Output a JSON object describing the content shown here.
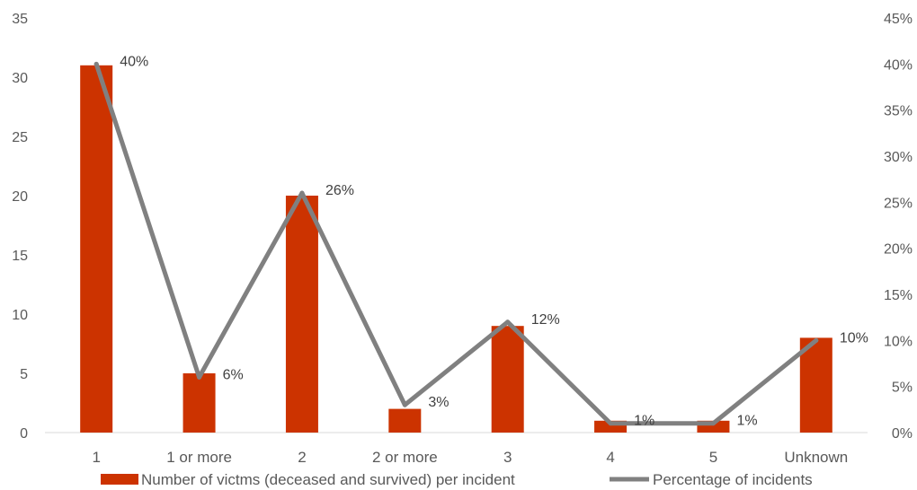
{
  "chart_data": {
    "type": "bar",
    "categories": [
      "1",
      "1 or more",
      "2",
      "2 or more",
      "3",
      "4",
      "5",
      "Unknown"
    ],
    "series": [
      {
        "name": "Number of victms (deceased and survived) per incident",
        "type": "bar",
        "axis": "left",
        "values": [
          31,
          5,
          20,
          2,
          9,
          1,
          1,
          8
        ],
        "color": "#cc3300"
      },
      {
        "name": "Percentage of incidents",
        "type": "line",
        "axis": "right",
        "values": [
          40,
          6,
          26,
          3,
          12,
          1,
          1,
          10
        ],
        "labels": [
          "40%",
          "6%",
          "26%",
          "3%",
          "12%",
          "1%",
          "1%",
          "10%"
        ],
        "color": "#808080"
      }
    ],
    "y_left": {
      "min": 0,
      "max": 35,
      "step": 5,
      "ticks": [
        "0",
        "5",
        "10",
        "15",
        "20",
        "25",
        "30",
        "35"
      ]
    },
    "y_right": {
      "min": 0,
      "max": 45,
      "step": 5,
      "ticks": [
        "0%",
        "5%",
        "10%",
        "15%",
        "20%",
        "25%",
        "30%",
        "35%",
        "40%",
        "45%"
      ]
    },
    "grid": false,
    "legend": "bottom"
  }
}
